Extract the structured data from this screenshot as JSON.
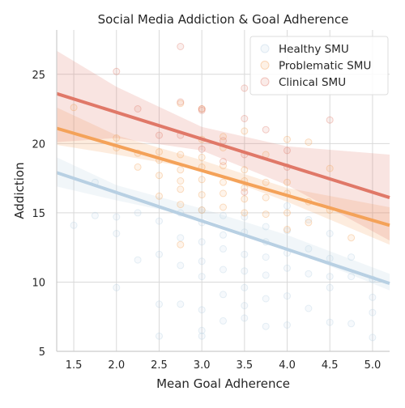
{
  "chart_data": {
    "type": "scatter",
    "title": "Social Media Addiction & Goal Adherence",
    "xlabel": "Mean Goal Adherence",
    "ylabel": "Addiction",
    "xlim": [
      1.3,
      5.2
    ],
    "ylim": [
      5,
      28.2
    ],
    "xticks": [
      "1.5",
      "2.0",
      "2.5",
      "3.0",
      "3.5",
      "4.0",
      "4.5",
      "5.0"
    ],
    "yticks": [
      "5",
      "10",
      "15",
      "20",
      "25"
    ],
    "grid": true,
    "legend_position": "top-right",
    "series": [
      {
        "name": "Healthy SMU",
        "color": "#b8d0e3",
        "fit": {
          "x": [
            1.3,
            5.2
          ],
          "y": [
            17.9,
            9.9
          ]
        },
        "band": {
          "x": [
            1.3,
            2.0,
            3.0,
            4.0,
            5.2
          ],
          "lower": [
            16.9,
            15.9,
            14.6,
            12.4,
            9.4
          ],
          "upper": [
            19.0,
            17.0,
            15.3,
            13.4,
            10.6
          ]
        },
        "points": [
          [
            1.5,
            14.1
          ],
          [
            1.75,
            14.8
          ],
          [
            1.75,
            17.2
          ],
          [
            2.0,
            9.6
          ],
          [
            2.0,
            13.5
          ],
          [
            2.0,
            14.7
          ],
          [
            2.25,
            11.6
          ],
          [
            2.25,
            15.0
          ],
          [
            2.5,
            8.4
          ],
          [
            2.5,
            12.0
          ],
          [
            2.5,
            14.4
          ],
          [
            2.5,
            6.1
          ],
          [
            2.75,
            8.4
          ],
          [
            2.75,
            13.2
          ],
          [
            2.75,
            15.0
          ],
          [
            2.75,
            11.2
          ],
          [
            3.0,
            6.5
          ],
          [
            3.0,
            6.1
          ],
          [
            3.0,
            10.4
          ],
          [
            3.0,
            11.5
          ],
          [
            3.0,
            12.9
          ],
          [
            3.0,
            14.3
          ],
          [
            3.0,
            15.2
          ],
          [
            3.0,
            8.0
          ],
          [
            3.25,
            7.2
          ],
          [
            3.25,
            9.1
          ],
          [
            3.25,
            10.9
          ],
          [
            3.25,
            12.4
          ],
          [
            3.25,
            13.4
          ],
          [
            3.25,
            14.8
          ],
          [
            3.5,
            7.4
          ],
          [
            3.5,
            8.3
          ],
          [
            3.5,
            9.6
          ],
          [
            3.5,
            10.8
          ],
          [
            3.5,
            12.0
          ],
          [
            3.5,
            13.6
          ],
          [
            3.5,
            14.7
          ],
          [
            3.75,
            6.8
          ],
          [
            3.75,
            8.8
          ],
          [
            3.75,
            10.5
          ],
          [
            3.75,
            11.8
          ],
          [
            3.75,
            12.9
          ],
          [
            3.75,
            14.0
          ],
          [
            4.0,
            6.9
          ],
          [
            4.0,
            9.0
          ],
          [
            4.0,
            11.0
          ],
          [
            4.0,
            12.1
          ],
          [
            4.0,
            13.7
          ],
          [
            4.0,
            15.5
          ],
          [
            4.25,
            8.1
          ],
          [
            4.25,
            10.6
          ],
          [
            4.25,
            12.4
          ],
          [
            4.25,
            14.5
          ],
          [
            4.5,
            7.1
          ],
          [
            4.5,
            9.6
          ],
          [
            4.5,
            10.4
          ],
          [
            4.5,
            11.7
          ],
          [
            4.5,
            13.5
          ],
          [
            4.75,
            7.0
          ],
          [
            4.75,
            10.4
          ],
          [
            4.75,
            11.8
          ],
          [
            5.0,
            6.0
          ],
          [
            5.0,
            7.8
          ],
          [
            5.0,
            8.9
          ],
          [
            5.0,
            10.2
          ]
        ]
      },
      {
        "name": "Problematic SMU",
        "color": "#f4a259",
        "fit": {
          "x": [
            1.3,
            5.2
          ],
          "y": [
            21.1,
            14.1
          ]
        },
        "band": {
          "x": [
            1.3,
            2.0,
            3.0,
            4.0,
            5.2
          ],
          "lower": [
            19.9,
            19.2,
            18.1,
            15.8,
            12.7
          ],
          "upper": [
            22.6,
            20.6,
            18.8,
            16.8,
            15.4
          ]
        },
        "points": [
          [
            1.5,
            22.6
          ],
          [
            2.0,
            20.4
          ],
          [
            2.0,
            19.7
          ],
          [
            2.25,
            19.3
          ],
          [
            2.25,
            18.3
          ],
          [
            2.5,
            17.7
          ],
          [
            2.5,
            18.8
          ],
          [
            2.5,
            19.4
          ],
          [
            2.5,
            16.2
          ],
          [
            2.75,
            12.7
          ],
          [
            2.75,
            15.6
          ],
          [
            2.75,
            16.7
          ],
          [
            2.75,
            17.3
          ],
          [
            2.75,
            18.1
          ],
          [
            2.75,
            19.2
          ],
          [
            2.75,
            22.9
          ],
          [
            3.0,
            15.2
          ],
          [
            3.0,
            16.3
          ],
          [
            3.0,
            17.4
          ],
          [
            3.0,
            18.3
          ],
          [
            3.0,
            19.0
          ],
          [
            3.0,
            20.3
          ],
          [
            3.0,
            22.5
          ],
          [
            3.25,
            15.4
          ],
          [
            3.25,
            16.4
          ],
          [
            3.25,
            17.2
          ],
          [
            3.25,
            18.4
          ],
          [
            3.25,
            19.7
          ],
          [
            3.25,
            20.5
          ],
          [
            3.5,
            15.0
          ],
          [
            3.5,
            16.0
          ],
          [
            3.5,
            16.8
          ],
          [
            3.5,
            17.3
          ],
          [
            3.5,
            18.1
          ],
          [
            3.5,
            20.9
          ],
          [
            3.75,
            14.9
          ],
          [
            3.75,
            16.1
          ],
          [
            3.75,
            17.2
          ],
          [
            3.75,
            19.2
          ],
          [
            4.0,
            13.8
          ],
          [
            4.0,
            15.0
          ],
          [
            4.0,
            16.4
          ],
          [
            4.0,
            17.2
          ],
          [
            4.0,
            20.3
          ],
          [
            4.25,
            14.3
          ],
          [
            4.25,
            15.8
          ],
          [
            4.25,
            20.1
          ],
          [
            4.5,
            15.2
          ],
          [
            4.5,
            18.2
          ],
          [
            4.75,
            13.2
          ]
        ]
      },
      {
        "name": "Clinical SMU",
        "color": "#e07868",
        "fit": {
          "x": [
            1.3,
            5.2
          ],
          "y": [
            23.6,
            16.1
          ]
        },
        "band": {
          "x": [
            1.3,
            2.0,
            3.0,
            4.0,
            5.2
          ],
          "lower": [
            20.1,
            20.4,
            19.5,
            17.0,
            13.0
          ],
          "upper": [
            26.7,
            24.1,
            21.2,
            19.8,
            19.2
          ]
        },
        "points": [
          [
            2.0,
            25.2
          ],
          [
            2.25,
            22.5
          ],
          [
            2.5,
            20.6
          ],
          [
            2.75,
            27.0
          ],
          [
            2.75,
            23.0
          ],
          [
            2.75,
            20.6
          ],
          [
            3.0,
            22.5
          ],
          [
            3.0,
            22.4
          ],
          [
            3.0,
            19.6
          ],
          [
            3.25,
            20.2
          ],
          [
            3.25,
            18.7
          ],
          [
            3.5,
            24.0
          ],
          [
            3.5,
            21.8
          ],
          [
            3.5,
            19.2
          ],
          [
            3.5,
            16.5
          ],
          [
            3.75,
            21.0
          ],
          [
            4.0,
            19.5
          ],
          [
            4.0,
            18.3
          ],
          [
            4.5,
            21.7
          ]
        ]
      }
    ]
  }
}
